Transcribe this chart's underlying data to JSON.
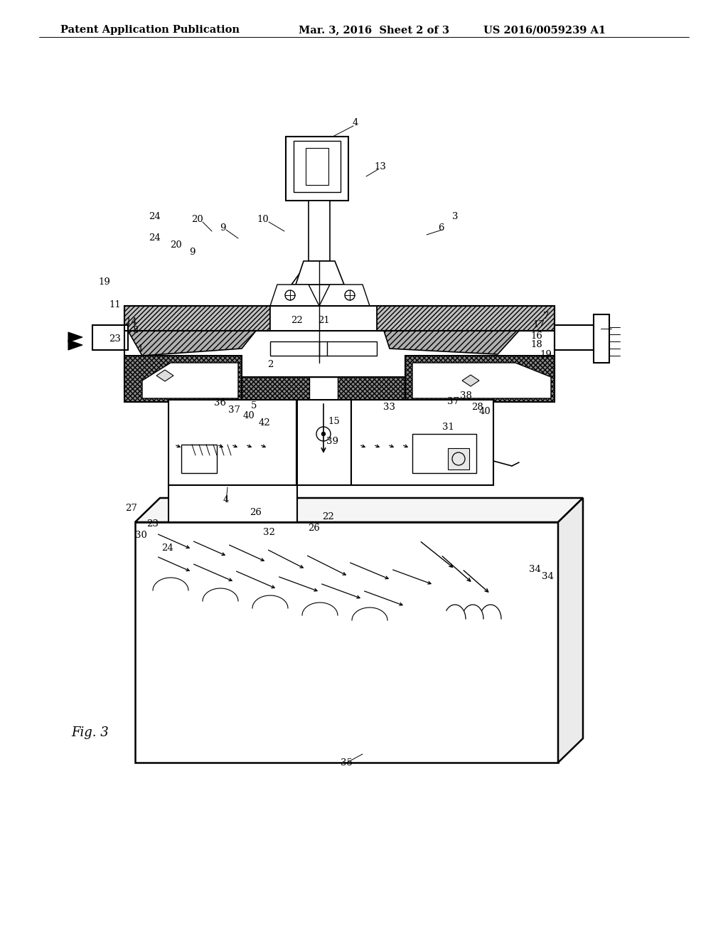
{
  "title_left": "Patent Application Publication",
  "title_mid": "Mar. 3, 2016  Sheet 2 of 3",
  "title_right": "US 2016/0059239 A1",
  "fig_label": "Fig. 3",
  "bg_color": "#ffffff",
  "line_color": "#000000",
  "hatch_gray": "#888888",
  "light_gray": "#dddddd",
  "title_fontsize": 10.5,
  "label_fontsize": 9,
  "fig_label_fontsize": 12
}
